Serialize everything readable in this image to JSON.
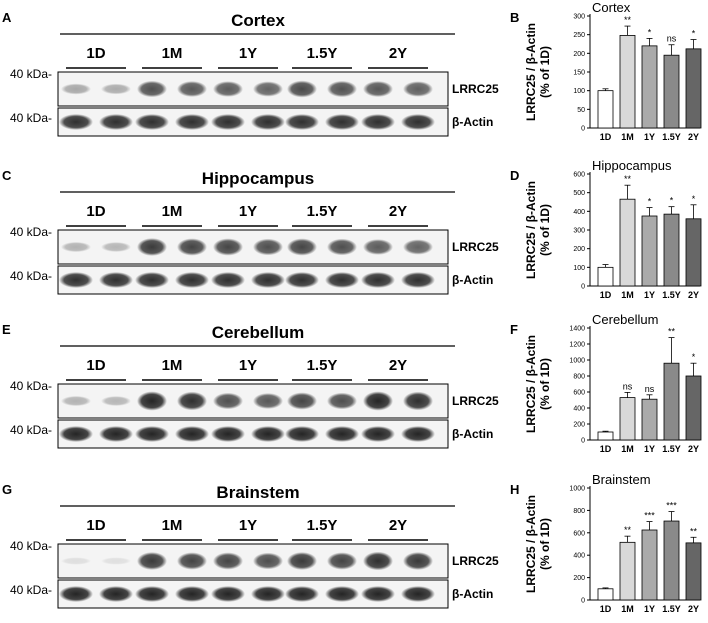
{
  "colors": {
    "bar_fills": [
      "#ffffff",
      "#d9d9d9",
      "#aaaaaa",
      "#8a8a8a",
      "#666666"
    ],
    "blot_background": "#f4f4f4",
    "band": "#1a1a1a"
  },
  "blot_common": {
    "marker": "40 kDa-",
    "lrrc25_label": "LRRC25",
    "actin_label": "β-Actin",
    "groups": [
      "1D",
      "1M",
      "1Y",
      "1.5Y",
      "2Y"
    ]
  },
  "rows": [
    {
      "blot": {
        "panel_letter": "A",
        "title": "Cortex",
        "lrrc25_intensity": [
          0.35,
          0.75,
          0.7,
          0.78,
          0.72
        ],
        "actin_intensity": [
          0.9,
          0.9,
          0.9,
          0.9,
          0.9
        ]
      },
      "chart_panel_letter": "B"
    },
    {
      "blot": {
        "panel_letter": "C",
        "title": "Hippocampus",
        "lrrc25_intensity": [
          0.3,
          0.85,
          0.8,
          0.8,
          0.7
        ],
        "actin_intensity": [
          0.9,
          0.9,
          0.9,
          0.9,
          0.9
        ]
      },
      "chart_panel_letter": "D"
    },
    {
      "blot": {
        "panel_letter": "E",
        "title": "Cerebellum",
        "lrrc25_intensity": [
          0.3,
          0.95,
          0.75,
          0.8,
          0.95
        ],
        "actin_intensity": [
          0.95,
          0.95,
          0.95,
          0.95,
          0.95
        ]
      },
      "chart_panel_letter": "F"
    },
    {
      "blot": {
        "panel_letter": "G",
        "title": "Brainstem",
        "lrrc25_intensity": [
          0.1,
          0.85,
          0.8,
          0.85,
          0.9
        ],
        "actin_intensity": [
          0.95,
          0.95,
          0.95,
          0.95,
          0.95
        ]
      },
      "chart_panel_letter": "H"
    }
  ],
  "chart_data": [
    {
      "type": "bar",
      "title": "Cortex",
      "categories": [
        "1D",
        "1M",
        "1Y",
        "1.5Y",
        "2Y"
      ],
      "values": [
        100,
        248,
        220,
        195,
        212
      ],
      "errors": [
        5,
        25,
        20,
        28,
        25
      ],
      "significance": [
        "",
        "**",
        "*",
        "ns",
        "*"
      ],
      "ylabel": [
        "LRRC25 / β-Actin",
        "(% of 1D)"
      ],
      "ylim": [
        0,
        300
      ],
      "yticks": [
        0,
        50,
        100,
        150,
        200,
        250,
        300
      ]
    },
    {
      "type": "bar",
      "title": "Hippocampus",
      "categories": [
        "1D",
        "1M",
        "1Y",
        "1.5Y",
        "2Y"
      ],
      "values": [
        100,
        465,
        375,
        385,
        360
      ],
      "errors": [
        15,
        75,
        45,
        40,
        75
      ],
      "significance": [
        "",
        "**",
        "*",
        "*",
        "*"
      ],
      "ylabel": [
        "LRRC25 / β-Actin",
        "(% of 1D)"
      ],
      "ylim": [
        0,
        600
      ],
      "yticks": [
        0,
        100,
        200,
        300,
        400,
        500,
        600
      ]
    },
    {
      "type": "bar",
      "title": "Cerebellum",
      "categories": [
        "1D",
        "1M",
        "1Y",
        "1.5Y",
        "2Y"
      ],
      "values": [
        100,
        530,
        510,
        960,
        800
      ],
      "errors": [
        10,
        65,
        55,
        320,
        160
      ],
      "significance": [
        "",
        "ns",
        "ns",
        "**",
        "*"
      ],
      "ylabel": [
        "LRRC25 / β-Actin",
        "(% of 1D)"
      ],
      "ylim": [
        0,
        1400
      ],
      "yticks": [
        0,
        200,
        400,
        600,
        800,
        1000,
        1200,
        1400
      ]
    },
    {
      "type": "bar",
      "title": "Brainstem",
      "categories": [
        "1D",
        "1M",
        "1Y",
        "1.5Y",
        "2Y"
      ],
      "values": [
        100,
        515,
        625,
        705,
        510
      ],
      "errors": [
        8,
        55,
        75,
        85,
        50
      ],
      "significance": [
        "",
        "**",
        "***",
        "***",
        "**"
      ],
      "ylabel": [
        "LRRC25 / β-Actin",
        "(% of 1D)"
      ],
      "ylim": [
        0,
        1000
      ],
      "yticks": [
        0,
        200,
        400,
        600,
        800,
        1000
      ]
    }
  ]
}
